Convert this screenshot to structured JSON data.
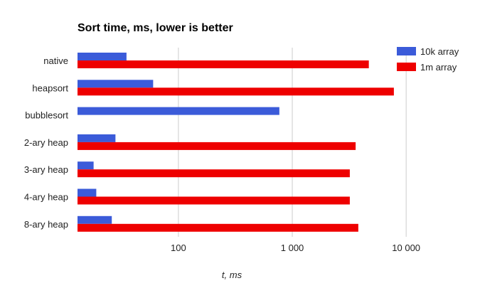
{
  "chart_data": {
    "type": "bar",
    "orientation": "horizontal",
    "title": "Sort time, ms, lower is better",
    "xlabel": "t, ms",
    "ylabel": "",
    "x_scale": "log",
    "xlim": [
      13,
      14500
    ],
    "x_ticks": [
      {
        "value": 100,
        "label": "100"
      },
      {
        "value": 1000,
        "label": "1 000"
      },
      {
        "value": 10000,
        "label": "10 000"
      }
    ],
    "grid": true,
    "legend_position": "top-right",
    "categories": [
      "native",
      "heapsort",
      "bubblesort",
      "2-ary heap",
      "3-ary heap",
      "4-ary heap",
      "8-ary heap"
    ],
    "series": [
      {
        "name": "10k array",
        "color": "#3b5bd9",
        "values": [
          35,
          60,
          770,
          28,
          18,
          19,
          26
        ]
      },
      {
        "name": "1m array",
        "color": "#ee0000",
        "values": [
          4700,
          7800,
          null,
          3600,
          3200,
          3200,
          3800
        ]
      }
    ]
  }
}
